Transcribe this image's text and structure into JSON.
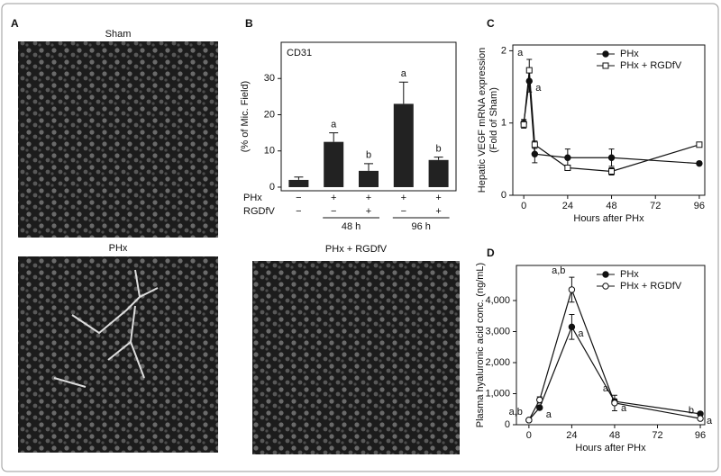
{
  "figure": {
    "panels": [
      "A",
      "B",
      "C",
      "D"
    ],
    "images": [
      "Sham",
      "PHx",
      "PHx + RGDfV"
    ]
  },
  "chart_data": [
    {
      "type": "bar",
      "title": "CD31",
      "ylabel": "(% of Mic. Field)",
      "ylim": [
        -1,
        40
      ],
      "yticks": [
        0,
        10,
        20,
        30
      ],
      "values": [
        2,
        12.5,
        4.5,
        23,
        7.5
      ],
      "errors": [
        0.8,
        2.5,
        2,
        6,
        0.8
      ],
      "point_labels": [
        null,
        "a",
        "b",
        "a",
        "b"
      ],
      "color": "#222222",
      "row_labels": [
        "PHx",
        "RGDfV"
      ],
      "rows": [
        [
          "−",
          "+",
          "+",
          "+",
          "+"
        ],
        [
          "−",
          "−",
          "+",
          "−",
          "+"
        ]
      ],
      "groups": [
        "48 h",
        "96 h"
      ]
    },
    {
      "type": "line",
      "ylabel": "Hepatic VEGF mRNA expression",
      "ylabel2": "(Fold of Sham)",
      "xlabel": "Hours after PHx",
      "x": [
        0,
        3,
        6,
        24,
        48,
        96
      ],
      "xlim": [
        -6,
        99
      ],
      "xticks": [
        0,
        24,
        48,
        72,
        96
      ],
      "ylim": [
        0,
        2.08
      ],
      "yticks": [
        0,
        1,
        2
      ],
      "legend": "upper right",
      "series": [
        {
          "name": "PHx",
          "color": "#111111",
          "marker": "filled-circle",
          "values": [
            1.0,
            1.58,
            0.57,
            0.52,
            0.52,
            0.44
          ],
          "errors": [
            0.05,
            0.15,
            0.12,
            0.12,
            0.12,
            0.02
          ],
          "point_labels": [
            null,
            "a",
            null,
            null,
            null,
            null
          ]
        },
        {
          "name": "PHx + RGDfV",
          "color": "#111111",
          "marker": "open-square",
          "values": [
            0.98,
            1.73,
            0.7,
            0.38,
            0.33,
            0.7
          ],
          "errors": [
            0.05,
            0.15,
            0.05,
            0.02,
            0.05,
            0.03
          ],
          "point_labels": [
            null,
            "a",
            null,
            null,
            null,
            null
          ]
        }
      ]
    },
    {
      "type": "line",
      "ylabel": "Plasma hyaluronic acid conc. (ng/mL)",
      "xlabel": "Hours after PHx",
      "x": [
        0,
        6,
        24,
        48,
        96
      ],
      "xlim": [
        -7,
        98.5
      ],
      "xticks": [
        0,
        24,
        48,
        72,
        96
      ],
      "ylim": [
        0,
        5130
      ],
      "yticks": [
        0,
        {
          "value": 1000,
          "label": "1,000"
        },
        {
          "value": 2000,
          "label": "2,000"
        },
        {
          "value": 3000,
          "label": "3,000"
        },
        {
          "value": 4000,
          "label": "4,000"
        }
      ],
      "legend": "upper right",
      "series": [
        {
          "name": "PHx",
          "color": "#111111",
          "marker": "filled-circle",
          "values": [
            150,
            550,
            3150,
            750,
            350
          ],
          "errors": [
            30,
            50,
            400,
            80,
            30
          ],
          "point_labels": [
            null,
            "a",
            "a",
            "a",
            "a"
          ]
        },
        {
          "name": "PHx + RGDfV",
          "color": "#111111",
          "marker": "open-circle",
          "values": [
            150,
            800,
            4350,
            700,
            200
          ],
          "errors": [
            50,
            100,
            400,
            250,
            40
          ],
          "point_labels": [
            "a,b",
            null,
            "a,b",
            "a",
            "b"
          ]
        }
      ]
    }
  ]
}
